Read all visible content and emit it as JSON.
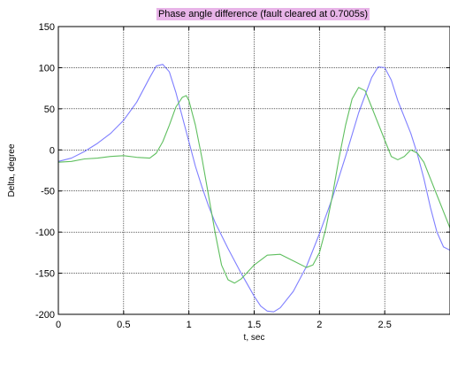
{
  "chart_data": {
    "type": "line",
    "title": "Phase angle difference (fault cleared at 0.7005s)",
    "xlabel": "t, sec",
    "ylabel": "Delta, degree",
    "xlim": [
      0,
      3
    ],
    "ylim": [
      -200,
      150
    ],
    "x_ticks": [
      0,
      0.5,
      1,
      1.5,
      2,
      2.5
    ],
    "x_tick_labels": [
      "0",
      "0.5",
      "1",
      "1.5",
      "2",
      "2.5"
    ],
    "y_ticks": [
      -200,
      -150,
      -100,
      -50,
      0,
      50,
      100,
      150
    ],
    "y_tick_labels": [
      "-200",
      "-150",
      "-100",
      "-50",
      "0",
      "50",
      "100",
      "150"
    ],
    "grid": true,
    "title_highlight_color": "#e8b4e8",
    "series": [
      {
        "color": "#7f7fff",
        "points": [
          [
            0,
            -14
          ],
          [
            0.1,
            -10
          ],
          [
            0.2,
            -2
          ],
          [
            0.3,
            8
          ],
          [
            0.4,
            20
          ],
          [
            0.5,
            36
          ],
          [
            0.6,
            58
          ],
          [
            0.7,
            88
          ],
          [
            0.75,
            102
          ],
          [
            0.8,
            104
          ],
          [
            0.85,
            95
          ],
          [
            0.9,
            70
          ],
          [
            0.95,
            40
          ],
          [
            1.0,
            10
          ],
          [
            1.05,
            -20
          ],
          [
            1.1,
            -45
          ],
          [
            1.15,
            -68
          ],
          [
            1.2,
            -88
          ],
          [
            1.3,
            -120
          ],
          [
            1.4,
            -150
          ],
          [
            1.5,
            -178
          ],
          [
            1.55,
            -190
          ],
          [
            1.6,
            -196
          ],
          [
            1.65,
            -197
          ],
          [
            1.7,
            -192
          ],
          [
            1.8,
            -172
          ],
          [
            1.9,
            -142
          ],
          [
            2.0,
            -102
          ],
          [
            2.1,
            -58
          ],
          [
            2.2,
            -8
          ],
          [
            2.3,
            45
          ],
          [
            2.4,
            88
          ],
          [
            2.45,
            101
          ],
          [
            2.5,
            100
          ],
          [
            2.55,
            85
          ],
          [
            2.6,
            60
          ],
          [
            2.7,
            20
          ],
          [
            2.75,
            -5
          ],
          [
            2.8,
            -35
          ],
          [
            2.85,
            -70
          ],
          [
            2.9,
            -100
          ],
          [
            2.95,
            -118
          ],
          [
            3.0,
            -122
          ]
        ]
      },
      {
        "color": "#5fbf5f",
        "points": [
          [
            0,
            -15
          ],
          [
            0.1,
            -14
          ],
          [
            0.2,
            -11
          ],
          [
            0.3,
            -10
          ],
          [
            0.4,
            -8
          ],
          [
            0.5,
            -7
          ],
          [
            0.6,
            -9
          ],
          [
            0.7,
            -10
          ],
          [
            0.75,
            -4
          ],
          [
            0.8,
            10
          ],
          [
            0.85,
            30
          ],
          [
            0.9,
            52
          ],
          [
            0.95,
            64
          ],
          [
            0.98,
            66
          ],
          [
            1.0,
            60
          ],
          [
            1.05,
            30
          ],
          [
            1.1,
            -10
          ],
          [
            1.15,
            -55
          ],
          [
            1.2,
            -100
          ],
          [
            1.25,
            -140
          ],
          [
            1.3,
            -158
          ],
          [
            1.35,
            -162
          ],
          [
            1.4,
            -157
          ],
          [
            1.5,
            -140
          ],
          [
            1.6,
            -128
          ],
          [
            1.7,
            -127
          ],
          [
            1.8,
            -135
          ],
          [
            1.9,
            -143
          ],
          [
            1.95,
            -140
          ],
          [
            2.0,
            -125
          ],
          [
            2.05,
            -95
          ],
          [
            2.1,
            -55
          ],
          [
            2.15,
            -10
          ],
          [
            2.2,
            30
          ],
          [
            2.25,
            62
          ],
          [
            2.3,
            76
          ],
          [
            2.35,
            72
          ],
          [
            2.4,
            52
          ],
          [
            2.5,
            12
          ],
          [
            2.55,
            -8
          ],
          [
            2.6,
            -12
          ],
          [
            2.65,
            -8
          ],
          [
            2.7,
            0
          ],
          [
            2.75,
            -4
          ],
          [
            2.8,
            -15
          ],
          [
            2.85,
            -35
          ],
          [
            2.9,
            -55
          ],
          [
            2.95,
            -75
          ],
          [
            3.0,
            -95
          ]
        ]
      }
    ]
  }
}
